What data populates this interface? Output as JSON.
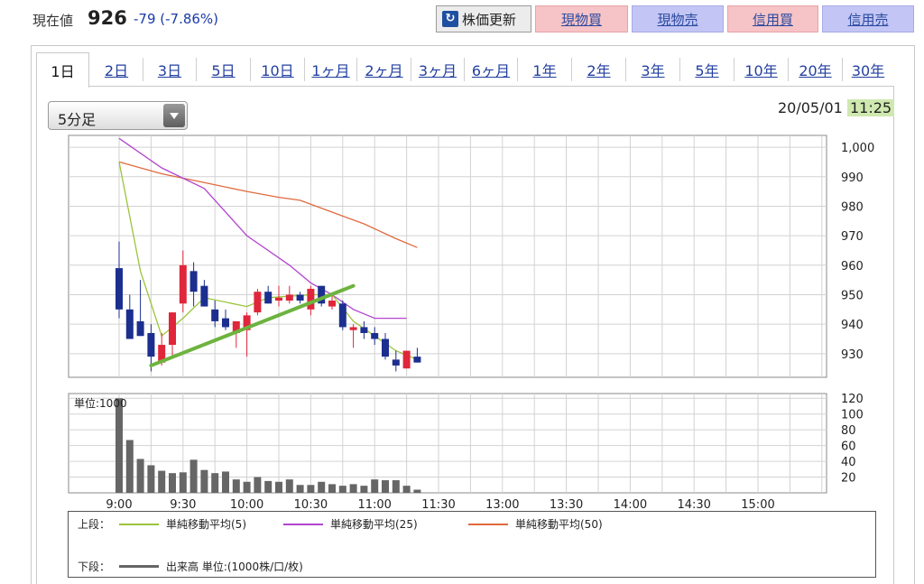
{
  "header": {
    "label": "現在値",
    "price": "926",
    "change": "-79 (-7.86%)",
    "buttons": {
      "refresh": "株価更新",
      "spot_buy": "現物買",
      "spot_sell": "現物売",
      "margin_buy": "信用買",
      "margin_sell": "信用売"
    }
  },
  "tabs": [
    "1日",
    "2日",
    "3日",
    "5日",
    "10日",
    "1ヶ月",
    "2ヶ月",
    "3ヶ月",
    "6ヶ月",
    "1年",
    "2年",
    "3年",
    "5年",
    "10年",
    "20年",
    "30年"
  ],
  "active_tab": "1日",
  "select": {
    "value": "5分足"
  },
  "datetime": {
    "date": "20/05/01",
    "time": "11:25"
  },
  "chart_data": {
    "type": "candlestick",
    "upper": {
      "ylim": [
        922,
        1004
      ],
      "y_ticks": [
        "1,000",
        "990",
        "980",
        "970",
        "960",
        "950",
        "940",
        "930"
      ],
      "y_tick_values": [
        1000,
        990,
        980,
        970,
        960,
        950,
        940,
        930
      ],
      "candles": [
        {
          "t": "9:00",
          "o": 959,
          "h": 968,
          "l": 942,
          "c": 945
        },
        {
          "t": "9:05",
          "o": 945,
          "h": 950,
          "l": 935,
          "c": 935
        },
        {
          "t": "9:10",
          "o": 941,
          "h": 955,
          "l": 936,
          "c": 936
        },
        {
          "t": "9:15",
          "o": 937,
          "h": 940,
          "l": 924,
          "c": 929
        },
        {
          "t": "9:20",
          "o": 927,
          "h": 937,
          "l": 926,
          "c": 933
        },
        {
          "t": "9:25",
          "o": 933,
          "h": 944,
          "l": 929,
          "c": 944
        },
        {
          "t": "9:30",
          "o": 947,
          "h": 965,
          "l": 944,
          "c": 960
        },
        {
          "t": "9:35",
          "o": 958,
          "h": 961,
          "l": 946,
          "c": 951
        },
        {
          "t": "9:40",
          "o": 953,
          "h": 955,
          "l": 946,
          "c": 946
        },
        {
          "t": "9:45",
          "o": 945,
          "h": 948,
          "l": 939,
          "c": 941
        },
        {
          "t": "9:50",
          "o": 942,
          "h": 945,
          "l": 938,
          "c": 939
        },
        {
          "t": "9:55",
          "o": 937,
          "h": 941,
          "l": 932,
          "c": 941
        },
        {
          "t": "10:00",
          "o": 938,
          "h": 944,
          "l": 929,
          "c": 943
        },
        {
          "t": "10:05",
          "o": 944,
          "h": 952,
          "l": 943,
          "c": 951
        },
        {
          "t": "10:10",
          "o": 951,
          "h": 953,
          "l": 947,
          "c": 947
        },
        {
          "t": "10:15",
          "o": 948,
          "h": 953,
          "l": 946,
          "c": 949
        },
        {
          "t": "10:20",
          "o": 948,
          "h": 953,
          "l": 947,
          "c": 950
        },
        {
          "t": "10:25",
          "o": 950,
          "h": 951,
          "l": 947,
          "c": 948
        },
        {
          "t": "10:30",
          "o": 945,
          "h": 953,
          "l": 943,
          "c": 952
        },
        {
          "t": "10:35",
          "o": 953,
          "h": 953,
          "l": 946,
          "c": 947
        },
        {
          "t": "10:40",
          "o": 946,
          "h": 950,
          "l": 945,
          "c": 948
        },
        {
          "t": "10:45",
          "o": 947,
          "h": 948,
          "l": 938,
          "c": 939
        },
        {
          "t": "10:50",
          "o": 938,
          "h": 940,
          "l": 932,
          "c": 939
        },
        {
          "t": "10:55",
          "o": 939,
          "h": 941,
          "l": 935,
          "c": 937
        },
        {
          "t": "11:00",
          "o": 937,
          "h": 939,
          "l": 933,
          "c": 935
        },
        {
          "t": "11:05",
          "o": 935,
          "h": 937,
          "l": 928,
          "c": 929
        },
        {
          "t": "11:10",
          "o": 928,
          "h": 931,
          "l": 924,
          "c": 926
        },
        {
          "t": "11:15",
          "o": 925,
          "h": 931,
          "l": 925,
          "c": 931
        },
        {
          "t": "11:20",
          "o": 929,
          "h": 932,
          "l": 927,
          "c": 927
        }
      ],
      "ma5": [
        [
          0,
          995
        ],
        [
          2,
          958
        ],
        [
          4,
          936
        ],
        [
          6,
          942
        ],
        [
          8,
          949
        ],
        [
          12,
          946
        ],
        [
          14,
          949
        ],
        [
          18,
          950
        ],
        [
          20,
          950
        ],
        [
          22,
          941
        ],
        [
          24,
          936
        ],
        [
          26,
          931
        ],
        [
          28,
          928
        ]
      ],
      "ma25": [
        [
          0,
          1003
        ],
        [
          4,
          993
        ],
        [
          8,
          986
        ],
        [
          12,
          970
        ],
        [
          16,
          960
        ],
        [
          18,
          954
        ],
        [
          20,
          950
        ],
        [
          22,
          945
        ],
        [
          24,
          942
        ],
        [
          27,
          942
        ]
      ],
      "ma50": [
        [
          0,
          995
        ],
        [
          4,
          991
        ],
        [
          8,
          988
        ],
        [
          12,
          985
        ],
        [
          15,
          983
        ],
        [
          17,
          982
        ],
        [
          20,
          978
        ],
        [
          23,
          974
        ],
        [
          26,
          969
        ],
        [
          28,
          966
        ]
      ],
      "trendline": [
        [
          3,
          926
        ],
        [
          22,
          953
        ]
      ]
    },
    "lower": {
      "unit_label": "単位:1000",
      "ylim": [
        0,
        126
      ],
      "y_ticks": [
        "120",
        "100",
        "80",
        "60",
        "40",
        "20"
      ],
      "y_tick_values": [
        120,
        100,
        80,
        60,
        40,
        20
      ],
      "volumes": [
        120,
        67,
        43,
        35,
        28,
        25,
        26,
        42,
        29,
        25,
        27,
        17,
        14,
        20,
        15,
        14,
        17,
        10,
        10,
        14,
        11,
        9,
        11,
        9,
        17,
        16,
        16,
        9,
        4
      ]
    },
    "x_ticks": [
      "9:00",
      "9:30",
      "10:00",
      "10:30",
      "11:00",
      "11:30",
      "13:00",
      "13:30",
      "14:00",
      "14:30",
      "15:00"
    ]
  },
  "colors": {
    "up": "#e0263a",
    "down": "#1c2f8f",
    "ma5": "#9bc43b",
    "ma25": "#b246cf",
    "ma50": "#e06a3e",
    "trendline": "#6db33f",
    "volume": "#666666"
  },
  "legend": {
    "upper_label": "上段：",
    "ma5": "単純移動平均(5)",
    "ma25": "単純移動平均(25)",
    "ma50": "単純移動平均(50)",
    "lower_label": "下段：",
    "volume": "出来高 単位:(1000株/口/枚)"
  }
}
